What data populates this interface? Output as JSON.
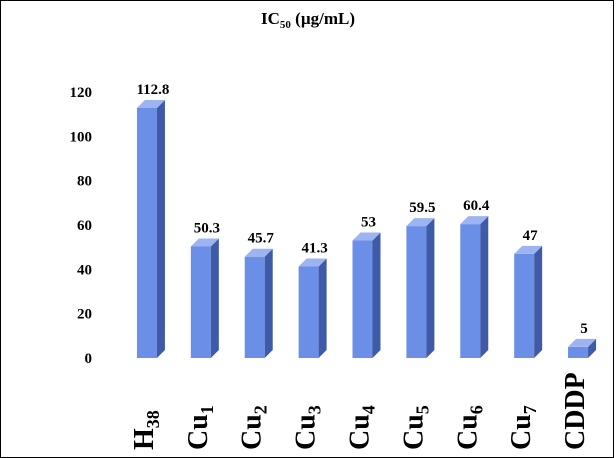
{
  "chart_data": {
    "type": "bar",
    "title": {
      "main": "IC",
      "subscript": "50",
      "rest": " (µg/mL)"
    },
    "categories": [
      {
        "base": "H",
        "sub": "38"
      },
      {
        "base": "Cu",
        "sub": "1"
      },
      {
        "base": "Cu",
        "sub": "2"
      },
      {
        "base": "Cu",
        "sub": "3"
      },
      {
        "base": "Cu",
        "sub": "4"
      },
      {
        "base": "Cu",
        "sub": "5"
      },
      {
        "base": "Cu",
        "sub": "6"
      },
      {
        "base": "Cu",
        "sub": "7"
      },
      {
        "base": "CDDP",
        "sub": ""
      }
    ],
    "values": [
      112.8,
      50.3,
      45.7,
      41.3,
      53,
      59.5,
      60.4,
      47,
      5
    ],
    "value_labels": [
      "112.8",
      "50.3",
      "45.7",
      "41.3",
      "53",
      "59.5",
      "60.4",
      "47",
      "5"
    ],
    "ylim": [
      0,
      120
    ],
    "yticks": [
      0,
      20,
      40,
      60,
      80,
      100,
      120
    ],
    "grid": false,
    "legend": "none",
    "colors": {
      "bar_front": "#6b8fe6",
      "bar_side": "#3f5aa8",
      "bar_top": "#9db4f0"
    }
  }
}
